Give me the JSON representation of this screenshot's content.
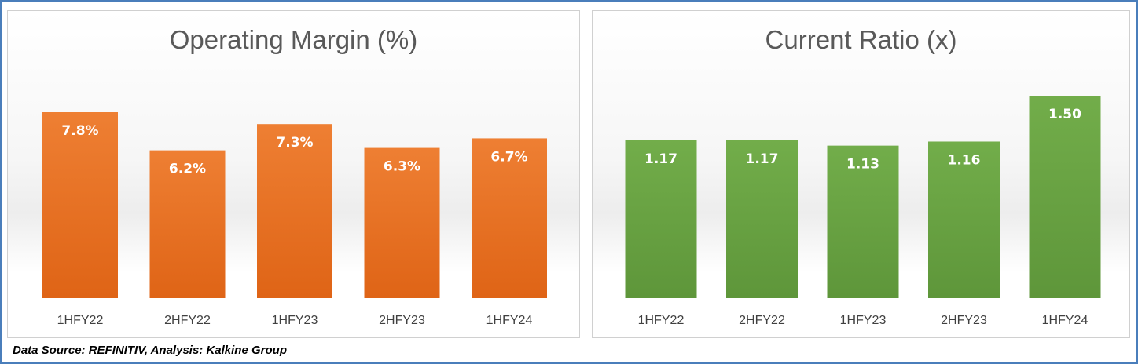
{
  "footer": {
    "source": "Data Source: REFINITIV, Analysis: Kalkine Group"
  },
  "colors": {
    "orange_top": "#ee7f33",
    "orange_bottom": "#df6416",
    "green_top": "#72ad4a",
    "green_bottom": "#5e963a"
  },
  "chart_data": [
    {
      "type": "bar",
      "title": "Operating Margin (%)",
      "categories": [
        "1HFY22",
        "2HFY22",
        "1HFY23",
        "2HFY23",
        "1HFY24"
      ],
      "values": [
        7.8,
        6.2,
        7.3,
        6.3,
        6.7
      ],
      "data_labels": [
        "7.8%",
        "6.2%",
        "7.3%",
        "6.3%",
        "6.7%"
      ],
      "ylim": [
        0,
        7.8
      ],
      "xlabel": "",
      "ylabel": "",
      "grid": false
    },
    {
      "type": "bar",
      "title": "Current Ratio (x)",
      "categories": [
        "1HFY22",
        "2HFY22",
        "1HFY23",
        "2HFY23",
        "1HFY24"
      ],
      "values": [
        1.17,
        1.17,
        1.13,
        1.16,
        1.5
      ],
      "data_labels": [
        "1.17",
        "1.17",
        "1.13",
        "1.16",
        "1.50"
      ],
      "ylim": [
        0,
        1.5
      ],
      "xlabel": "",
      "ylabel": "",
      "grid": false
    }
  ]
}
